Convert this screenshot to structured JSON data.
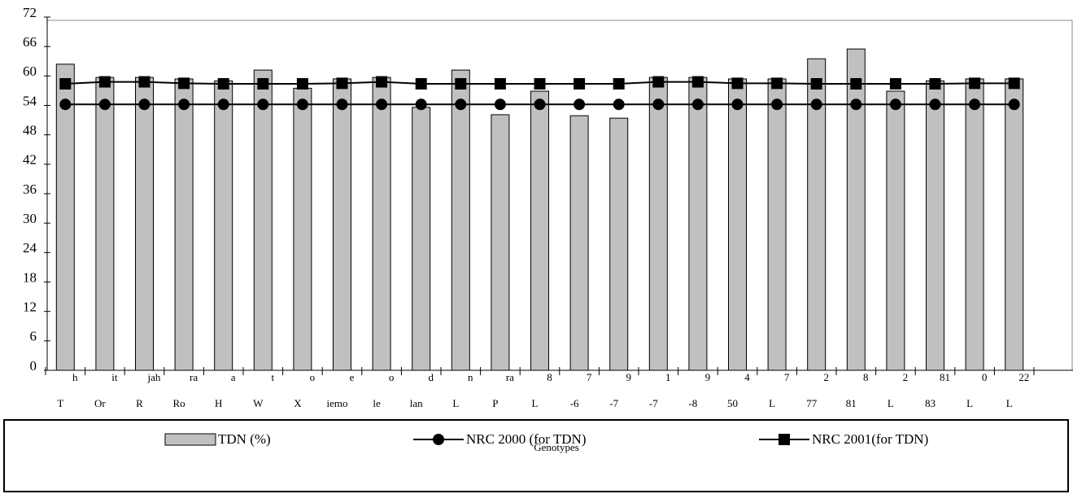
{
  "chart_data": {
    "type": "bar",
    "x_label": "Genotypes",
    "categories": [
      "h",
      "it",
      "jah",
      "ra",
      "a",
      "t",
      "o",
      "e",
      "o",
      "d",
      "n",
      "ra",
      "8",
      "7",
      "9",
      "1",
      "9",
      "4",
      "7",
      "2",
      "8",
      "2",
      "81",
      "0",
      "22"
    ],
    "category_sublabels": [
      "T",
      "Or",
      "R",
      "Ro",
      "H",
      "W",
      "X",
      "iemo",
      "le",
      "lan",
      "L",
      "P",
      "L",
      "-6",
      "-7",
      "-7",
      "-8",
      "50",
      "L",
      "77",
      "81",
      "L",
      "83",
      "L",
      "L"
    ],
    "ylim": [
      0,
      72
    ],
    "yticks": [
      0,
      6,
      12,
      18,
      24,
      30,
      36,
      42,
      48,
      54,
      60,
      66,
      72
    ],
    "series": [
      {
        "name": "TDN (%)",
        "kind": "bar",
        "color": "#c0c0c0",
        "values": [
          62.4,
          59.7,
          59.7,
          59.4,
          59.0,
          61.2,
          57.5,
          59.4,
          59.7,
          53.6,
          61.2,
          52.1,
          56.9,
          51.9,
          51.4,
          59.7,
          59.7,
          59.4,
          59.4,
          63.5,
          65.5,
          56.9,
          59.0,
          59.4,
          59.4
        ]
      },
      {
        "name": "NRC 2000 (for TDN)",
        "kind": "line",
        "marker": "circle",
        "color": "#000000",
        "values": [
          54.2,
          54.2,
          54.2,
          54.2,
          54.2,
          54.2,
          54.2,
          54.2,
          54.2,
          54.2,
          54.2,
          54.2,
          54.2,
          54.2,
          54.2,
          54.2,
          54.2,
          54.2,
          54.2,
          54.2,
          54.2,
          54.2,
          54.2,
          54.2,
          54.2
        ]
      },
      {
        "name": "NRC 2001(for TDN)",
        "kind": "line",
        "marker": "square",
        "color": "#000000",
        "values": [
          58.4,
          58.8,
          58.8,
          58.5,
          58.4,
          58.4,
          58.4,
          58.5,
          58.8,
          58.4,
          58.4,
          58.4,
          58.4,
          58.4,
          58.4,
          58.8,
          58.8,
          58.5,
          58.5,
          58.4,
          58.4,
          58.4,
          58.4,
          58.5,
          58.5
        ]
      }
    ]
  }
}
